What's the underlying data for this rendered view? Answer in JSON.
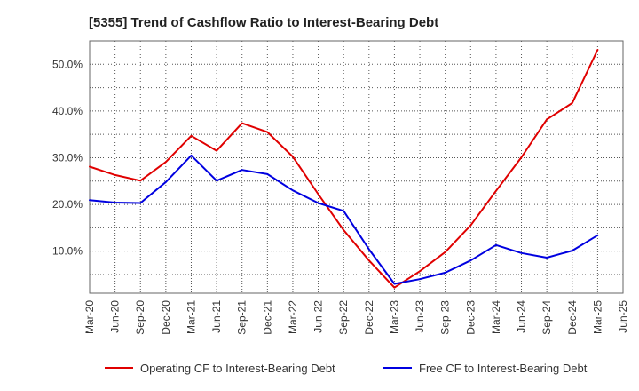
{
  "chart_data": {
    "type": "line",
    "title": "[5355]  Trend of Cashflow Ratio to Interest-Bearing Debt",
    "xlabel": "",
    "ylabel": "",
    "x": [
      "Mar-20",
      "Jun-20",
      "Sep-20",
      "Dec-20",
      "Mar-21",
      "Jun-21",
      "Sep-21",
      "Dec-21",
      "Mar-22",
      "Jun-22",
      "Sep-22",
      "Dec-22",
      "Mar-23",
      "Jun-23",
      "Sep-23",
      "Dec-23",
      "Mar-24",
      "Jun-24",
      "Sep-24",
      "Dec-24",
      "Mar-25",
      "Jun-25"
    ],
    "ylim": [
      1.0,
      55.0
    ],
    "yticks": [
      10,
      20,
      30,
      40,
      50
    ],
    "ytick_labels": [
      "10.0%",
      "20.0%",
      "30.0%",
      "40.0%",
      "50.0%"
    ],
    "grid": true,
    "legend_position": "bottom",
    "series": [
      {
        "name": "Operating CF to Interest-Bearing Debt",
        "color": "#e00000",
        "values": [
          28.1,
          26.3,
          25.1,
          29.1,
          34.7,
          31.5,
          37.4,
          35.5,
          30.2,
          22.2,
          14.5,
          8.0,
          2.2,
          5.7,
          9.8,
          15.5,
          22.9,
          30.1,
          38.2,
          41.7,
          53.1,
          null
        ]
      },
      {
        "name": "Free CF to Interest-Bearing Debt",
        "color": "#0000e0",
        "values": [
          20.9,
          20.4,
          20.3,
          24.8,
          30.5,
          25.1,
          27.4,
          26.5,
          23.0,
          20.3,
          18.6,
          10.4,
          3.0,
          4.0,
          5.4,
          8.0,
          11.3,
          9.6,
          8.6,
          10.1,
          13.4,
          null
        ]
      }
    ]
  }
}
